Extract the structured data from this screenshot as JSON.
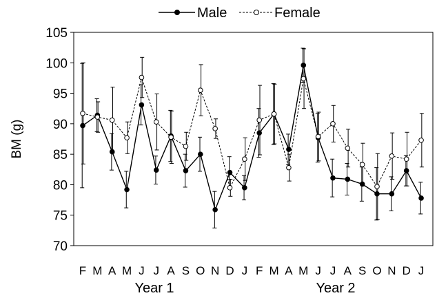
{
  "chart_data": {
    "type": "line",
    "title": "",
    "xlabel": "",
    "ylabel": "BM (g)",
    "ylim": [
      70,
      105
    ],
    "yticks": [
      70,
      75,
      80,
      85,
      90,
      95,
      100,
      105
    ],
    "grid": false,
    "legend_position": "top-center",
    "categories": [
      "F",
      "M",
      "A",
      "M",
      "J",
      "J",
      "A",
      "S",
      "O",
      "N",
      "D",
      "J",
      "F",
      "M",
      "A",
      "M",
      "J",
      "J",
      "A",
      "S",
      "O",
      "N",
      "D",
      "J"
    ],
    "year_labels": [
      "Year 1",
      "Year 2"
    ],
    "series": [
      {
        "name": "Male",
        "style": "solid",
        "marker": "filled-circle",
        "color": "#000000",
        "values": [
          89.7,
          91.4,
          85.4,
          79.2,
          93.1,
          82.4,
          88.0,
          82.3,
          85.0,
          75.9,
          82.0,
          79.5,
          88.5,
          91.6,
          85.8,
          99.6,
          87.7,
          81.1,
          80.9,
          80.1,
          78.5,
          78.5,
          82.3,
          77.8
        ],
        "errors": [
          10.2,
          2.7,
          3.0,
          3.0,
          3.3,
          2.3,
          4.2,
          2.7,
          2.8,
          3.0,
          2.6,
          2.0,
          4.0,
          5.0,
          2.5,
          2.8,
          4.0,
          3.1,
          2.6,
          2.8,
          4.3,
          2.8,
          2.5,
          2.6
        ]
      },
      {
        "name": "Female",
        "style": "dashed",
        "marker": "open-circle",
        "color": "#000000",
        "values": [
          91.7,
          91.1,
          90.6,
          87.7,
          97.6,
          90.3,
          87.8,
          86.3,
          95.5,
          89.2,
          79.5,
          84.2,
          90.6,
          91.6,
          82.8,
          97.4,
          87.9,
          90.0,
          86.0,
          83.3,
          79.7,
          84.7,
          84.2,
          87.3
        ],
        "errors": [
          8.3,
          2.5,
          5.4,
          2.6,
          3.3,
          4.6,
          4.3,
          2.3,
          4.2,
          1.6,
          1.4,
          3.5,
          5.7,
          4.9,
          2.2,
          4.9,
          4.0,
          3.0,
          3.1,
          3.5,
          5.4,
          3.8,
          4.4,
          4.4
        ]
      }
    ]
  }
}
